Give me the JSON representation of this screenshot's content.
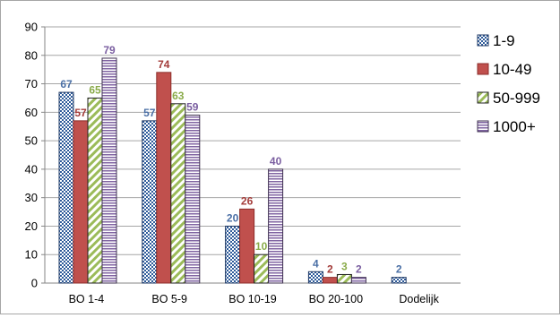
{
  "chart_data": {
    "type": "bar",
    "categories": [
      "BO 1-4",
      "BO 5-9",
      "BO 10-19",
      "BO 20-100",
      "Dodelijk"
    ],
    "series": [
      {
        "name": "1-9",
        "values": [
          67,
          57,
          20,
          4,
          2
        ],
        "color": "#2e5b9a",
        "pattern": "checker",
        "label_color": "#4a6fa5"
      },
      {
        "name": "10-49",
        "values": [
          57,
          74,
          26,
          2,
          null
        ],
        "color": "#c0504d",
        "pattern": "solid",
        "label_color": "#a33b39"
      },
      {
        "name": "50-999",
        "values": [
          65,
          63,
          10,
          3,
          null
        ],
        "color": "#9bbb59",
        "pattern": "diagonal",
        "label_color": "#8aab4a"
      },
      {
        "name": "1000+",
        "values": [
          79,
          59,
          40,
          2,
          null
        ],
        "color": "#8064a2",
        "pattern": "horizontal",
        "label_color": "#7a5ea0"
      }
    ],
    "data_labels": [
      [
        "67",
        "57",
        "20",
        "4",
        "2"
      ],
      [
        "57",
        "74",
        "26",
        "2",
        ""
      ],
      [
        "65",
        "63",
        "10",
        "3",
        ""
      ],
      [
        "79",
        "59",
        "40",
        "2",
        ""
      ]
    ],
    "y_ticks": [
      "0",
      "10",
      "20",
      "30",
      "40",
      "50",
      "60",
      "70",
      "80",
      "90"
    ],
    "ylim": [
      0,
      90
    ],
    "grid": true,
    "legend_position": "right",
    "title": "",
    "xlabel": "",
    "ylabel": ""
  }
}
